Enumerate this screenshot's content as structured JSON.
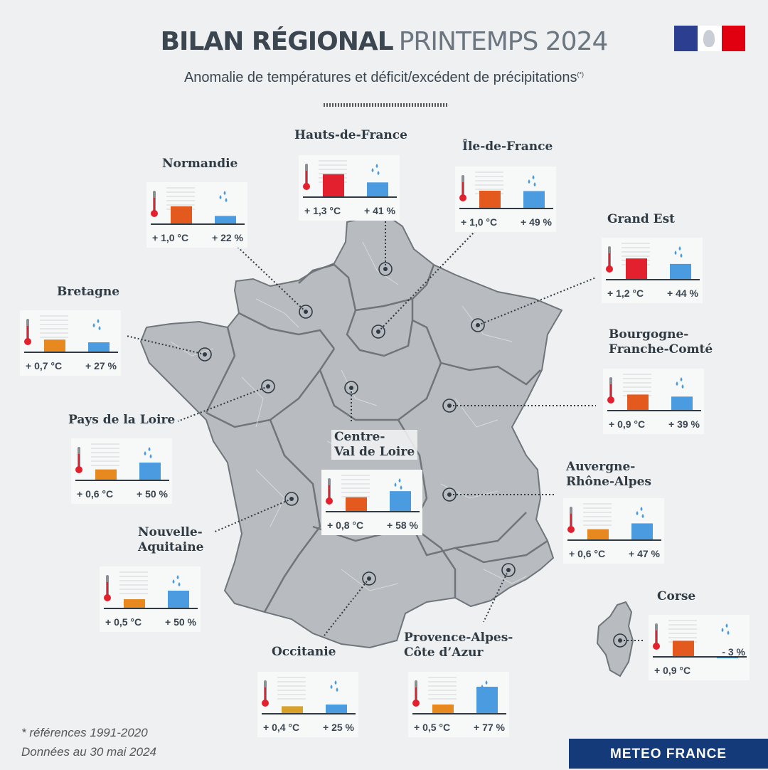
{
  "header": {
    "title_bold": "BILAN RÉGIONAL",
    "title_light": "PRINTEMPS 2024",
    "subtitle": "Anomalie de températures et déficit/excédent de précipitations",
    "subtitle_note": "(*)"
  },
  "colors": {
    "temp_red": "#e3202e",
    "temp_orange": "#e45a1e",
    "temp_amber": "#e8891f",
    "temp_yellow": "#d9a12a",
    "precip_blue": "#4a9be0",
    "map_fill": "#b8bcc0",
    "map_border": "#6f757a",
    "brand_blue": "#143a7a"
  },
  "regions": [
    {
      "name": "Hauts-de-France",
      "temp": "+ 1,3 °C",
      "precip": "+ 41 %",
      "t": 1.3,
      "p": 41
    },
    {
      "name": "Île-de-France",
      "temp": "+ 1,0 °C",
      "precip": "+ 49 %",
      "t": 1.0,
      "p": 49
    },
    {
      "name": "Normandie",
      "temp": "+ 1,0 °C",
      "precip": "+ 22 %",
      "t": 1.0,
      "p": 22
    },
    {
      "name": "Grand Est",
      "temp": "+ 1,2 °C",
      "precip": "+ 44 %",
      "t": 1.2,
      "p": 44
    },
    {
      "name": "Bretagne",
      "temp": "+ 0,7 °C",
      "precip": "+ 27 %",
      "t": 0.7,
      "p": 27
    },
    {
      "name": "Bourgogne-\nFranche-Comté",
      "temp": "+ 0,9 °C",
      "precip": "+ 39 %",
      "t": 0.9,
      "p": 39
    },
    {
      "name": "Pays de la Loire",
      "temp": "+ 0,6 °C",
      "precip": "+ 50 %",
      "t": 0.6,
      "p": 50
    },
    {
      "name": "Centre-\nVal de Loire",
      "temp": "+ 0,8 °C",
      "precip": "+ 58 %",
      "t": 0.8,
      "p": 58
    },
    {
      "name": "Auvergne-\nRhône-Alpes",
      "temp": "+ 0,6 °C",
      "precip": "+ 47 %",
      "t": 0.6,
      "p": 47
    },
    {
      "name": "Nouvelle-\nAquitaine",
      "temp": "+ 0,5 °C",
      "precip": "+ 50 %",
      "t": 0.5,
      "p": 50
    },
    {
      "name": "Occitanie",
      "temp": "+ 0,4 °C",
      "precip": "+ 25 %",
      "t": 0.4,
      "p": 25
    },
    {
      "name": "Provence-Alpes-\nCôte d’Azur",
      "temp": "+ 0,5 °C",
      "precip": "+ 77 %",
      "t": 0.5,
      "p": 77
    },
    {
      "name": "Corse",
      "temp": "+ 0,9 °C",
      "precip": "- 3 %",
      "t": 0.9,
      "p": -3
    }
  ],
  "footer": {
    "note": "* références 1991-2020",
    "date": "Données au 30 mai 2024"
  },
  "brand": {
    "label": "METEO FRANCE"
  }
}
